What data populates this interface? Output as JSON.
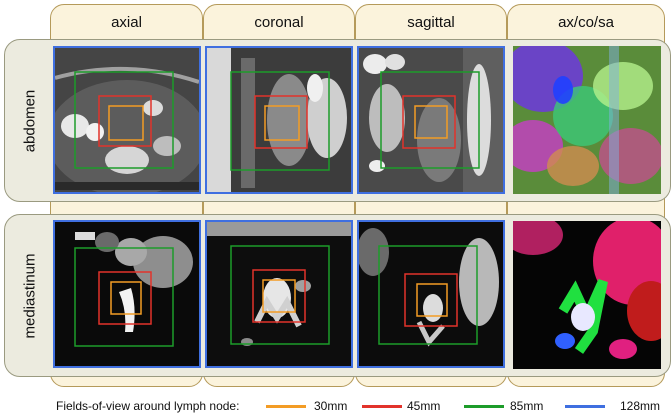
{
  "columns": [
    "axial",
    "coronal",
    "sagittal",
    "ax/co/sa"
  ],
  "rows": [
    "abdomen",
    "mediastinum"
  ],
  "legend": {
    "caption": "Fields-of-view around lymph node:",
    "items": [
      {
        "label": "30mm",
        "color": "#f39c25"
      },
      {
        "label": "45mm",
        "color": "#e2332b"
      },
      {
        "label": "85mm",
        "color": "#1d9c2a"
      },
      {
        "label": "128mm",
        "color": "#3f6fe0"
      }
    ]
  }
}
